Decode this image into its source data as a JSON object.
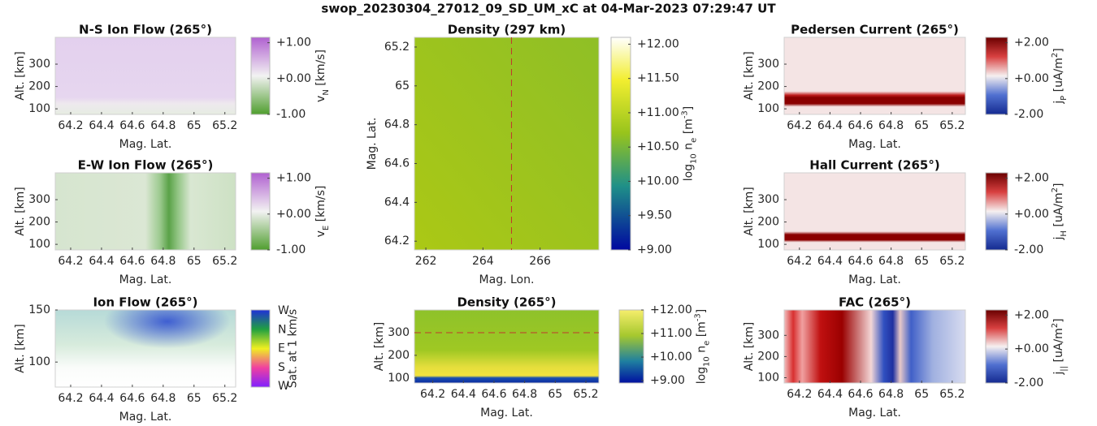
{
  "suptitle": "swop_20230304_27012_09_SD_UM_xC at 04-Mar-2023 07:29:47 UT",
  "chart_data": [
    {
      "type": "heatmap",
      "title": "N-S Ion Flow (265°)",
      "xlabel": "Mag. Lat.",
      "ylabel": "Alt. [km]",
      "xlim": [
        64.1,
        65.27
      ],
      "xticks": [
        64.2,
        64.4,
        64.6,
        64.8,
        65,
        65.2
      ],
      "ylim": [
        75,
        420
      ],
      "yticks": [
        100,
        200,
        300
      ],
      "colorbar": {
        "label": [
          {
            "text": "v"
          },
          {
            "text": "N",
            "shift": "sub"
          },
          {
            "text": " [km/s]"
          }
        ],
        "lim": [
          -1,
          1.15
        ],
        "ticks": [
          {
            "value": 1,
            "label": "+1.00"
          },
          {
            "value": 0,
            "label": "+0.00"
          },
          {
            "value": -1,
            "label": "-1.00"
          }
        ]
      }
    },
    {
      "type": "heatmap",
      "title": "E-W Ion Flow (265°)",
      "xlabel": "Mag. Lat.",
      "ylabel": "Alt. [km]",
      "xlim": [
        64.1,
        65.27
      ],
      "xticks": [
        64.2,
        64.4,
        64.6,
        64.8,
        65,
        65.2
      ],
      "ylim": [
        75,
        420
      ],
      "yticks": [
        100,
        200,
        300
      ],
      "colorbar": {
        "label": [
          {
            "text": "v"
          },
          {
            "text": "E",
            "shift": "sub"
          },
          {
            "text": " [km/s]"
          }
        ],
        "lim": [
          -1,
          1.15
        ],
        "ticks": [
          {
            "value": 1,
            "label": "+1.00"
          },
          {
            "value": 0,
            "label": "+0.00"
          },
          {
            "value": -1,
            "label": "-1.00"
          }
        ]
      }
    },
    {
      "type": "heatmap",
      "title": "Ion Flow (265°)",
      "xlabel": "Mag. Lat.",
      "ylabel": "Alt. [km]",
      "xlim": [
        64.1,
        65.27
      ],
      "xticks": [
        64.2,
        64.4,
        64.6,
        64.8,
        65,
        65.2
      ],
      "ylim": [
        76,
        150
      ],
      "yticks": [
        100,
        150
      ],
      "colorbar": {
        "label": [
          {
            "text": "Sat. at 1 km/s"
          }
        ],
        "categories": [
          "W",
          "N",
          "E",
          "S",
          "W"
        ]
      }
    },
    {
      "type": "heatmap",
      "title": "Density (297 km)",
      "xlabel": "Mag. Lon.",
      "ylabel": "Mag. Lat.",
      "xlim": [
        261.6,
        268.06
      ],
      "xticks": [
        262,
        264,
        266
      ],
      "ylim": [
        64.155,
        65.25
      ],
      "yticks": [
        64.2,
        64.4,
        64.6,
        64.8,
        65,
        65.2
      ],
      "reference_line": {
        "x": 265
      },
      "reference_color": "#c0392b",
      "colorbar": {
        "label": [
          {
            "text": "log"
          },
          {
            "text": "10",
            "shift": "sub"
          },
          {
            "text": " n"
          },
          {
            "text": "e",
            "shift": "sub"
          },
          {
            "text": " [m"
          },
          {
            "text": "-3",
            "shift": "super"
          },
          {
            "text": "]"
          }
        ],
        "lim": [
          9,
          12.1
        ],
        "ticks": [
          {
            "value": 12,
            "label": "+12.00"
          },
          {
            "value": 11.5,
            "label": "+11.50"
          },
          {
            "value": 11,
            "label": "+11.00"
          },
          {
            "value": 10.5,
            "label": "+10.50"
          },
          {
            "value": 10,
            "label": "+10.00"
          },
          {
            "value": 9.5,
            "label": "+9.50"
          },
          {
            "value": 9,
            "label": "+9.00"
          }
        ]
      }
    },
    {
      "type": "heatmap",
      "title": "Density (265°)",
      "xlabel": "Mag. Lat.",
      "ylabel": "Alt. [km]",
      "xlim": [
        64.08,
        65.285
      ],
      "xticks": [
        64.2,
        64.4,
        64.6,
        64.8,
        65,
        65.2
      ],
      "ylim": [
        78,
        400
      ],
      "yticks": [
        100,
        200,
        300
      ],
      "reference_line": {
        "y": 300
      },
      "reference_color": "#c0392b",
      "colorbar": {
        "label": [
          {
            "text": "log"
          },
          {
            "text": "10",
            "shift": "sub"
          },
          {
            "text": " n"
          },
          {
            "text": "e",
            "shift": "sub"
          },
          {
            "text": " [m"
          },
          {
            "text": "-3",
            "shift": "super"
          },
          {
            "text": "]"
          }
        ],
        "lim": [
          8.9,
          12
        ],
        "ticks": [
          {
            "value": 12,
            "label": "+12.00"
          },
          {
            "value": 11,
            "label": "+11.00"
          },
          {
            "value": 10,
            "label": "+10.00"
          },
          {
            "value": 9,
            "label": "+9.00"
          }
        ]
      }
    },
    {
      "type": "heatmap",
      "title": "Pedersen Current (265°)",
      "xlabel": "Mag. Lat.",
      "ylabel": "Alt. [km]",
      "xlim": [
        64.1,
        65.286
      ],
      "xticks": [
        64.2,
        64.4,
        64.6,
        64.8,
        65,
        65.2
      ],
      "ylim": [
        75,
        420
      ],
      "yticks": [
        100,
        200,
        300
      ],
      "colorbar": {
        "label": [
          {
            "text": "j"
          },
          {
            "text": "P",
            "shift": "sub"
          },
          {
            "text": " [uA/m"
          },
          {
            "text": "2",
            "shift": "super"
          },
          {
            "text": "]"
          }
        ],
        "lim": [
          -2,
          2.3
        ],
        "ticks": [
          {
            "value": 2,
            "label": "+2.00"
          },
          {
            "value": 0,
            "label": "+0.00"
          },
          {
            "value": -2,
            "label": "-2.00"
          }
        ]
      }
    },
    {
      "type": "heatmap",
      "title": "Hall Current (265°)",
      "xlabel": "Mag. Lat.",
      "ylabel": "Alt. [km]",
      "xlim": [
        64.1,
        65.286
      ],
      "xticks": [
        64.2,
        64.4,
        64.6,
        64.8,
        65,
        65.2
      ],
      "ylim": [
        75,
        420
      ],
      "yticks": [
        100,
        200,
        300
      ],
      "colorbar": {
        "label": [
          {
            "text": "j"
          },
          {
            "text": "H",
            "shift": "sub"
          },
          {
            "text": " [uA/m"
          },
          {
            "text": "2",
            "shift": "super"
          },
          {
            "text": "]"
          }
        ],
        "lim": [
          -2,
          2.3
        ],
        "ticks": [
          {
            "value": 2,
            "label": "+2.00"
          },
          {
            "value": 0,
            "label": "+0.00"
          },
          {
            "value": -2,
            "label": "-2.00"
          }
        ]
      }
    },
    {
      "type": "heatmap",
      "title": "FAC (265°)",
      "xlabel": "Mag. Lat.",
      "ylabel": "Alt. [km]",
      "xlim": [
        64.1,
        65.286
      ],
      "xticks": [
        64.2,
        64.4,
        64.6,
        64.8,
        65,
        65.2
      ],
      "ylim": [
        75,
        420
      ],
      "yticks": [
        100,
        200,
        300
      ],
      "colorbar": {
        "label": [
          {
            "text": "j"
          },
          {
            "text": "||",
            "shift": "sub"
          },
          {
            "text": " [uA/m"
          },
          {
            "text": "2",
            "shift": "super"
          },
          {
            "text": "]"
          }
        ],
        "lim": [
          -2,
          2.3
        ],
        "ticks": [
          {
            "value": 2,
            "label": "+2.00"
          },
          {
            "value": 0,
            "label": "+0.00"
          },
          {
            "value": -2,
            "label": "-2.00"
          }
        ]
      }
    }
  ]
}
